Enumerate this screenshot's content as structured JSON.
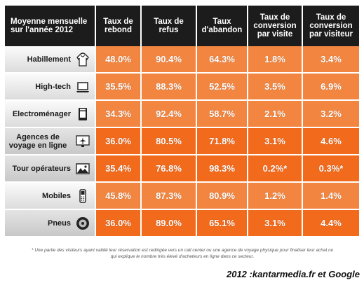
{
  "chart_data": {
    "type": "table",
    "columns": [
      "Moyenne mensuelle sur l'année 2012",
      "Taux de rebond",
      "Taux de refus",
      "Taux d'abandon",
      "Taux de conversion par visite",
      "Taux de conversion par visiteur"
    ],
    "rows": [
      {
        "label": "Habillement",
        "icon": "hoodie-icon",
        "values": [
          "48.0%",
          "90.4%",
          "64.3%",
          "1.8%",
          "3.4%"
        ]
      },
      {
        "label": "High-tech",
        "icon": "laptop-icon",
        "values": [
          "35.5%",
          "88.3%",
          "52.5%",
          "3.5%",
          "6.9%"
        ]
      },
      {
        "label": "Electroménager",
        "icon": "appliance-icon",
        "values": [
          "34.3%",
          "92.4%",
          "58.7%",
          "2.1%",
          "3.2%"
        ]
      },
      {
        "label": "Agences de voyage en ligne",
        "icon": "airplane-icon",
        "values": [
          "36.0%",
          "80.5%",
          "71.8%",
          "3.1%",
          "4.6%"
        ]
      },
      {
        "label": "Tour opérateurs",
        "icon": "landscape-photo-icon",
        "values": [
          "35.4%",
          "76.8%",
          "98.3%",
          "0.2%*",
          "0.3%*"
        ]
      },
      {
        "label": "Mobiles",
        "icon": "mobile-phone-icon",
        "values": [
          "45.8%",
          "87.3%",
          "80.9%",
          "1.2%",
          "1.4%"
        ]
      },
      {
        "label": "Pneus",
        "icon": "tire-icon",
        "values": [
          "36.0%",
          "89.0%",
          "65.1%",
          "3.1%",
          "4.4%"
        ]
      }
    ],
    "row_shading": [
      "light",
      "light",
      "light",
      "dark",
      "dark",
      "light",
      "dark"
    ],
    "footnote": "* Une partie des visiteurs ayant validé leur réservation est redirigée vers un call center ou une agence de voyage physique pour finaliser leur achat ce qui explique le nombre très élevé d'acheteurs en ligne dans ce secteur.",
    "source": "2012 :kantarmedia.fr et Google",
    "colors": {
      "header": "#1c1c1c",
      "light_orange": "#f28641",
      "dark_orange": "#f26a1c",
      "label_bg": "#dcdcdc"
    }
  }
}
